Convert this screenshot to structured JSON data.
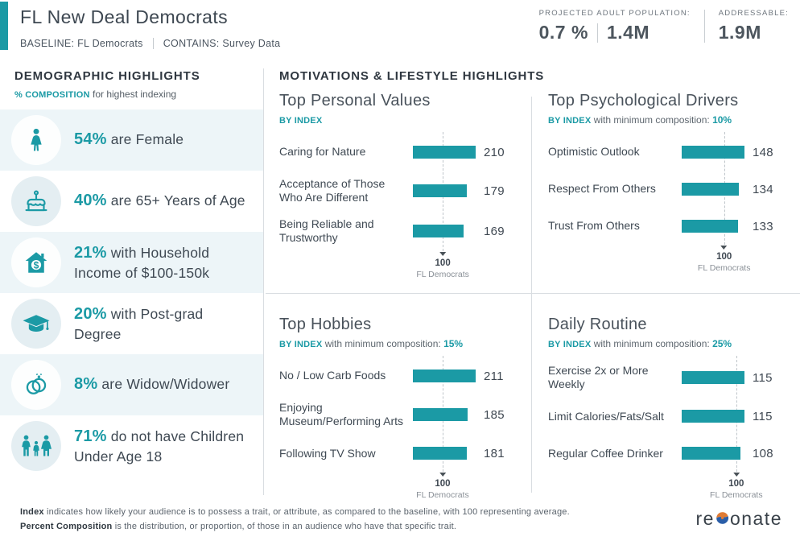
{
  "colors": {
    "teal": "#1b9aa5",
    "dark_text": "#3e4853",
    "row_tint": "#edf5f8",
    "circle_tint": "#e4eef2",
    "divider": "#d9dde1",
    "logo_orange": "#e07b33",
    "logo_blue": "#2a5ea8"
  },
  "header": {
    "title": "FL New Deal Democrats",
    "baseline_label": "BASELINE: FL Democrats",
    "contains_label": "CONTAINS: Survey Data",
    "stats": [
      {
        "label": "PROJECTED ADULT POPULATION:",
        "values": [
          "0.7 %",
          "1.4M"
        ]
      },
      {
        "label": "ADDRESSABLE:",
        "values": [
          "1.9M"
        ]
      }
    ]
  },
  "sidebar": {
    "heading": "DEMOGRAPHIC HIGHLIGHTS",
    "subheading_accent": "% COMPOSITION",
    "subheading_rest": " for highest indexing",
    "rows": [
      {
        "icon": "female-icon",
        "percent": "54%",
        "text": " are Female"
      },
      {
        "icon": "birthday-cake-icon",
        "percent": "40%",
        "text": " are 65+ Years of Age"
      },
      {
        "icon": "house-income-icon",
        "percent": "21%",
        "text": " with Household Income of $100-150k"
      },
      {
        "icon": "graduation-cap-icon",
        "percent": "20%",
        "text": " with Post-grad Degree"
      },
      {
        "icon": "wedding-rings-icon",
        "percent": "8%",
        "text": " are Widow/Widower"
      },
      {
        "icon": "family-icon",
        "percent": "71%",
        "text": " do not have Children Under Age 18"
      }
    ]
  },
  "main": {
    "heading": "MOTIVATIONS & LIFESTYLE HIGHLIGHTS"
  },
  "chart_data": [
    {
      "type": "bar",
      "title": "Top Personal Values",
      "by_label": "BY INDEX",
      "min_composition_text": "",
      "min_composition": "",
      "categories": [
        "Caring for Nature",
        "Acceptance of Those Who Are Different",
        "Being Reliable and Trustworthy"
      ],
      "values": [
        210,
        179,
        169
      ],
      "baseline": 100,
      "baseline_value_label": "100",
      "baseline_name": "FL Democrats",
      "xlabel": "",
      "ylabel": "",
      "legend": "none",
      "grid": "off"
    },
    {
      "type": "bar",
      "title": "Top Psychological Drivers",
      "by_label": "BY INDEX",
      "min_composition_text": " with minimum composition: ",
      "min_composition": "10%",
      "categories": [
        "Optimistic Outlook",
        "Respect From Others",
        "Trust From Others"
      ],
      "values": [
        148,
        134,
        133
      ],
      "baseline": 100,
      "baseline_value_label": "100",
      "baseline_name": "FL Democrats",
      "xlabel": "",
      "ylabel": "",
      "legend": "none",
      "grid": "off"
    },
    {
      "type": "bar",
      "title": "Top Hobbies",
      "by_label": "BY INDEX",
      "min_composition_text": " with minimum composition: ",
      "min_composition": "15%",
      "categories": [
        "No / Low Carb Foods",
        "Enjoying Museum/Performing Arts",
        "Following TV Show"
      ],
      "values": [
        211,
        185,
        181
      ],
      "baseline": 100,
      "baseline_value_label": "100",
      "baseline_name": "FL Democrats",
      "xlabel": "",
      "ylabel": "",
      "legend": "none",
      "grid": "off"
    },
    {
      "type": "bar",
      "title": "Daily Routine",
      "by_label": "BY INDEX",
      "min_composition_text": " with minimum composition: ",
      "min_composition": "25%",
      "categories": [
        "Exercise 2x or More Weekly",
        "Limit Calories/Fats/Salt",
        "Regular Coffee Drinker"
      ],
      "values": [
        115,
        115,
        108
      ],
      "baseline": 100,
      "baseline_value_label": "100",
      "baseline_name": "FL Democrats",
      "xlabel": "",
      "ylabel": "",
      "legend": "none",
      "grid": "off"
    }
  ],
  "footer": {
    "line1_bold": "Index",
    "line1_rest": " indicates how likely your audience is to possess a trait, or attribute, as compared to the baseline, with 100 representing average.",
    "line2_bold": "Percent Composition",
    "line2_rest": " is the distribution, or proportion, of those in an audience who have that specific trait.",
    "logo_text_pre": "re",
    "logo_text_post": "onate"
  }
}
